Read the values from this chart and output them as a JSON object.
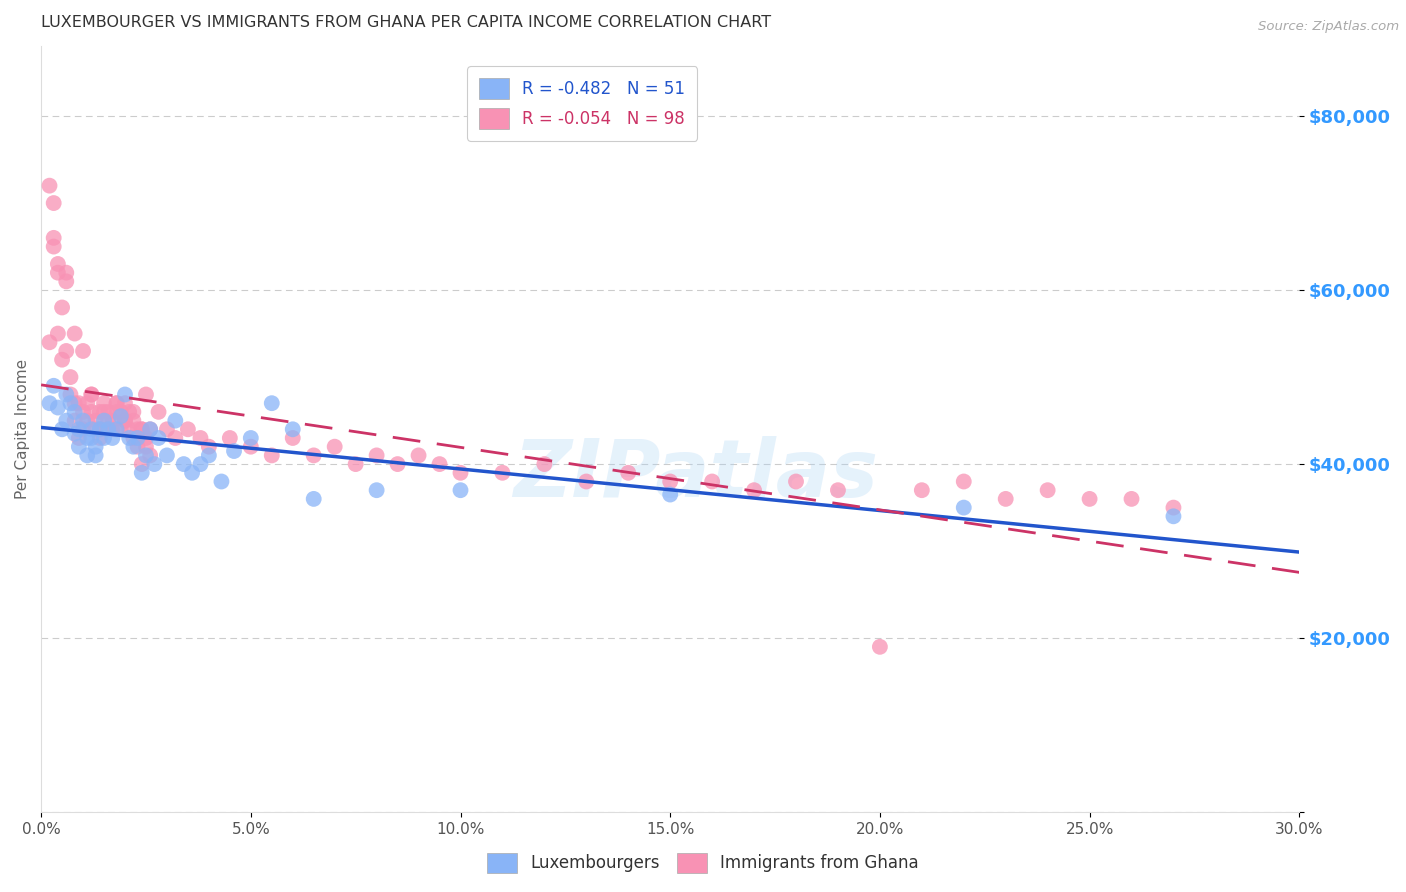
{
  "title": "LUXEMBOURGER VS IMMIGRANTS FROM GHANA PER CAPITA INCOME CORRELATION CHART",
  "source": "Source: ZipAtlas.com",
  "ylabel": "Per Capita Income",
  "y_ticks": [
    0,
    20000,
    40000,
    60000,
    80000
  ],
  "y_tick_labels": [
    "",
    "$20,000",
    "$40,000",
    "$60,000",
    "$80,000"
  ],
  "x_range": [
    0.0,
    0.3
  ],
  "y_range": [
    0,
    88000
  ],
  "lux_color": "#89b4f7",
  "ghana_color": "#f892b4",
  "lux_line_color": "#2255cc",
  "ghana_line_color": "#cc3366",
  "lux_R": -0.482,
  "lux_N": 51,
  "ghana_R": -0.054,
  "ghana_N": 98,
  "watermark": "ZIPatlas",
  "background_color": "#ffffff",
  "grid_color": "#cccccc",
  "axis_label_color": "#3399ff",
  "lux_scatter_x": [
    0.002,
    0.003,
    0.004,
    0.005,
    0.006,
    0.006,
    0.007,
    0.008,
    0.008,
    0.009,
    0.009,
    0.01,
    0.011,
    0.011,
    0.012,
    0.012,
    0.013,
    0.013,
    0.014,
    0.015,
    0.015,
    0.016,
    0.017,
    0.018,
    0.019,
    0.02,
    0.021,
    0.022,
    0.023,
    0.024,
    0.025,
    0.026,
    0.027,
    0.028,
    0.03,
    0.032,
    0.034,
    0.036,
    0.038,
    0.04,
    0.043,
    0.046,
    0.05,
    0.055,
    0.06,
    0.065,
    0.08,
    0.1,
    0.15,
    0.22,
    0.27
  ],
  "lux_scatter_y": [
    47000,
    49000,
    46500,
    44000,
    48000,
    45000,
    47000,
    43500,
    46000,
    44000,
    42000,
    45000,
    43000,
    41000,
    44000,
    43000,
    42000,
    41000,
    44000,
    43000,
    45000,
    44000,
    43000,
    44000,
    45500,
    48000,
    43000,
    42000,
    43000,
    39000,
    41000,
    44000,
    40000,
    43000,
    41000,
    45000,
    40000,
    39000,
    40000,
    41000,
    38000,
    41500,
    43000,
    47000,
    44000,
    36000,
    37000,
    37000,
    36500,
    35000,
    34000
  ],
  "ghana_scatter_x": [
    0.002,
    0.002,
    0.003,
    0.003,
    0.004,
    0.004,
    0.005,
    0.005,
    0.006,
    0.006,
    0.007,
    0.007,
    0.008,
    0.008,
    0.009,
    0.009,
    0.01,
    0.01,
    0.011,
    0.011,
    0.012,
    0.012,
    0.013,
    0.013,
    0.014,
    0.014,
    0.015,
    0.015,
    0.016,
    0.016,
    0.017,
    0.017,
    0.018,
    0.018,
    0.019,
    0.019,
    0.02,
    0.02,
    0.021,
    0.021,
    0.022,
    0.022,
    0.023,
    0.023,
    0.024,
    0.024,
    0.025,
    0.025,
    0.026,
    0.026,
    0.003,
    0.004,
    0.006,
    0.008,
    0.01,
    0.012,
    0.014,
    0.016,
    0.018,
    0.02,
    0.022,
    0.024,
    0.025,
    0.028,
    0.03,
    0.032,
    0.035,
    0.038,
    0.04,
    0.045,
    0.05,
    0.055,
    0.06,
    0.065,
    0.07,
    0.075,
    0.08,
    0.085,
    0.09,
    0.095,
    0.1,
    0.11,
    0.12,
    0.13,
    0.14,
    0.15,
    0.16,
    0.17,
    0.18,
    0.19,
    0.2,
    0.21,
    0.22,
    0.23,
    0.24,
    0.25,
    0.26,
    0.27
  ],
  "ghana_scatter_y": [
    72000,
    54000,
    70000,
    66000,
    62000,
    55000,
    52000,
    58000,
    53000,
    62000,
    50000,
    48000,
    47000,
    45000,
    43000,
    47000,
    46000,
    44000,
    47000,
    45000,
    48000,
    46000,
    44000,
    45000,
    44000,
    43000,
    47000,
    46000,
    45000,
    46000,
    45000,
    44000,
    47000,
    46000,
    44000,
    46000,
    47000,
    45000,
    46000,
    44000,
    45000,
    46000,
    44000,
    42000,
    40000,
    44000,
    42000,
    43000,
    41000,
    44000,
    65000,
    63000,
    61000,
    55000,
    53000,
    48000,
    46000,
    44000,
    47000,
    45000,
    43000,
    44000,
    48000,
    46000,
    44000,
    43000,
    44000,
    43000,
    42000,
    43000,
    42000,
    41000,
    43000,
    41000,
    42000,
    40000,
    41000,
    40000,
    41000,
    40000,
    39000,
    39000,
    40000,
    38000,
    39000,
    38000,
    38000,
    37000,
    38000,
    37000,
    19000,
    37000,
    38000,
    36000,
    37000,
    36000,
    36000,
    35000
  ]
}
